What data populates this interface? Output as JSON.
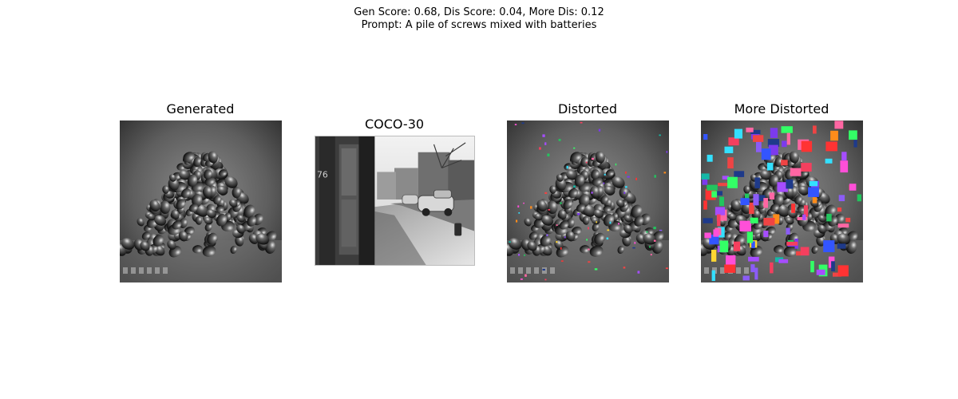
{
  "figure": {
    "scores_line": "Gen Score: 0.68, Dis Score: 0.04, More Dis: 0.12",
    "prompt_line": "Prompt: A pile of screws mixed with batteries"
  },
  "panels": [
    {
      "title": "Generated",
      "image": "pile of dark screws and batteries on grey background"
    },
    {
      "title": "COCO-30",
      "image": "black-and-white street photo with parked cars and sidewalk"
    },
    {
      "title": "Distorted",
      "image": "pile of screws with small colored noise specks"
    },
    {
      "title": "More Distorted",
      "image": "pile of screws with many large colored rectangles"
    }
  ]
}
